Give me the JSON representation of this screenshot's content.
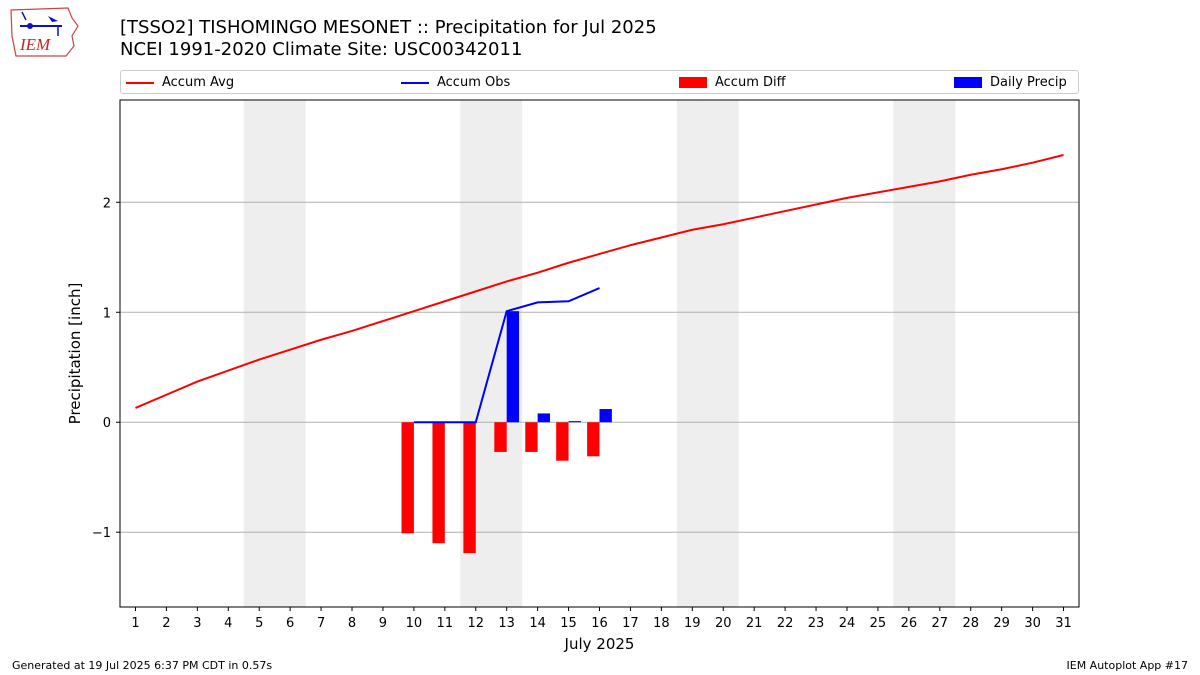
{
  "header": {
    "logo_text": "IEM",
    "title": "[TSSO2] TISHOMINGO MESONET :: Precipitation for Jul 2025",
    "subtitle": "NCEI 1991-2020 Climate Site: USC00342011"
  },
  "legend": {
    "items": [
      {
        "label": "Accum Avg",
        "color": "#ff0000",
        "kind": "line"
      },
      {
        "label": "Accum Obs",
        "color": "#0000ff",
        "kind": "line"
      },
      {
        "label": "Accum Diff",
        "color": "#ff0000",
        "kind": "bar"
      },
      {
        "label": "Daily Precip",
        "color": "#0000ff",
        "kind": "bar"
      }
    ]
  },
  "footer": {
    "left": "Generated at 19 Jul 2025 6:37 PM CDT in 0.57s",
    "right": "IEM Autoplot App #17"
  },
  "chart_data": {
    "type": "bar",
    "title": "[TSSO2] TISHOMINGO MESONET :: Precipitation for Jul 2025",
    "subtitle": "NCEI 1991-2020 Climate Site: USC00342011",
    "xlabel": "July 2025",
    "ylabel": "Precipitation [inch]",
    "xlim": [
      0.5,
      31.5
    ],
    "ylim": [
      -1.68,
      2.93
    ],
    "grid": "y",
    "legend_position": "top",
    "x_ticks": [
      1,
      2,
      3,
      4,
      5,
      6,
      7,
      8,
      9,
      10,
      11,
      12,
      13,
      14,
      15,
      16,
      17,
      18,
      19,
      20,
      21,
      22,
      23,
      24,
      25,
      26,
      27,
      28,
      29,
      30,
      31
    ],
    "y_ticks": [
      -1,
      0,
      1,
      2
    ],
    "y_tick_labels": [
      "−1",
      "0",
      "1",
      "2"
    ],
    "weekend_shading": [
      [
        4.5,
        6.5
      ],
      [
        11.5,
        13.5
      ],
      [
        18.5,
        20.5
      ],
      [
        25.5,
        27.5
      ]
    ],
    "series": [
      {
        "name": "Accum Avg",
        "kind": "line",
        "color": "#ff0000",
        "x": [
          1,
          2,
          3,
          4,
          5,
          6,
          7,
          8,
          9,
          10,
          11,
          12,
          13,
          14,
          15,
          16,
          17,
          18,
          19,
          20,
          21,
          22,
          23,
          24,
          25,
          26,
          27,
          28,
          29,
          30,
          31
        ],
        "values": [
          0.13,
          0.25,
          0.37,
          0.47,
          0.57,
          0.66,
          0.75,
          0.83,
          0.92,
          1.01,
          1.1,
          1.19,
          1.28,
          1.36,
          1.45,
          1.53,
          1.61,
          1.68,
          1.75,
          1.8,
          1.86,
          1.92,
          1.98,
          2.04,
          2.09,
          2.14,
          2.19,
          2.25,
          2.3,
          2.36,
          2.43
        ]
      },
      {
        "name": "Accum Obs",
        "kind": "line",
        "color": "#0000ff",
        "x": [
          10,
          11,
          12,
          13,
          14,
          15,
          16
        ],
        "values": [
          0.0,
          0.0,
          0.0,
          1.01,
          1.09,
          1.1,
          1.22
        ]
      },
      {
        "name": "Accum Diff",
        "kind": "bar",
        "color": "#ff0000",
        "offset": -0.2,
        "x": [
          10,
          11,
          12,
          13,
          14,
          15,
          16
        ],
        "values": [
          -1.01,
          -1.1,
          -1.19,
          -0.27,
          -0.27,
          -0.35,
          -0.31
        ]
      },
      {
        "name": "Daily Precip",
        "kind": "bar",
        "color": "#0000ff",
        "offset": 0.2,
        "x": [
          10,
          11,
          12,
          13,
          14,
          15,
          16
        ],
        "values": [
          0.0,
          0.0,
          0.0,
          1.01,
          0.08,
          0.01,
          0.12
        ]
      }
    ]
  }
}
